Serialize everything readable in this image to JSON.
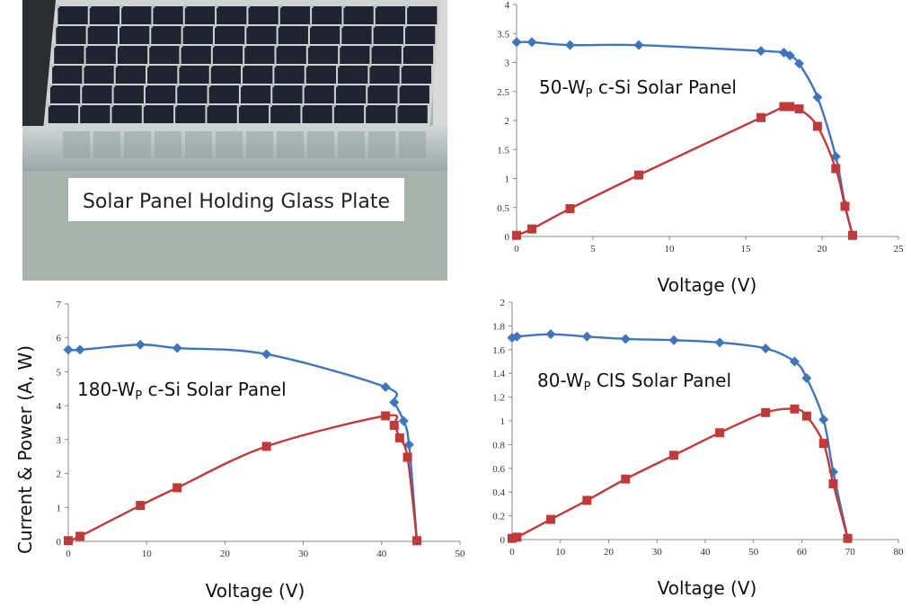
{
  "photo": {
    "caption": "Solar Panel Holding Glass Plate",
    "colors": {
      "frame": "#c9ccca",
      "cell": "#1f2430",
      "cell_line": "#bcc3c8",
      "glass": "#aeb8b6",
      "background": "#a8b3ad",
      "label_bg": "#ffffff",
      "dark_left": "#2b2e30"
    }
  },
  "shared": {
    "ylabel": "Current & Power (A, W)",
    "xlabel": "Voltage (V)"
  },
  "series_colors": {
    "current": "#3f75bd",
    "power": "#c0393b"
  },
  "chart_data": [
    {
      "type": "line",
      "label_prefix": "50-W",
      "label_sub": "P",
      "label_suffix": " c-Si Solar Panel",
      "xlabel": "Voltage (V)",
      "xlim": [
        0,
        25
      ],
      "ylim": [
        0,
        4
      ],
      "xticks": [
        0,
        5,
        10,
        15,
        20,
        25
      ],
      "yticks": [
        0,
        0.5,
        1,
        1.5,
        2,
        2.5,
        3,
        3.5,
        4
      ],
      "series": [
        {
          "marker": "diamond",
          "x": [
            0,
            1,
            3.5,
            8,
            16,
            17.5,
            17.9,
            18.5,
            19.7,
            20.9,
            21.5,
            22
          ],
          "y": [
            3.35,
            3.35,
            3.3,
            3.3,
            3.2,
            3.17,
            3.12,
            2.98,
            2.4,
            1.38,
            0.55,
            0.02
          ]
        },
        {
          "marker": "square",
          "x": [
            0,
            1,
            3.5,
            8,
            16,
            17.5,
            17.9,
            18.5,
            19.7,
            20.9,
            21.5,
            22
          ],
          "y": [
            0.02,
            0.13,
            0.48,
            1.06,
            2.05,
            2.24,
            2.24,
            2.2,
            1.9,
            1.17,
            0.52,
            0.02
          ]
        }
      ]
    },
    {
      "type": "line",
      "label_prefix": "180-W",
      "label_sub": "P",
      "label_suffix": " c-Si Solar Panel",
      "xlabel": "Voltage (V)",
      "xlim": [
        0,
        50
      ],
      "ylim": [
        0,
        7
      ],
      "xticks": [
        0,
        10,
        20,
        30,
        40,
        50
      ],
      "yticks": [
        0,
        1,
        2,
        3,
        4,
        5,
        6,
        7
      ],
      "series": [
        {
          "marker": "diamond",
          "x": [
            0,
            1.5,
            9.2,
            13.9,
            25.3,
            40.5,
            41.6,
            42.8,
            43.5,
            44.5
          ],
          "y": [
            5.65,
            5.65,
            5.8,
            5.7,
            5.52,
            4.55,
            4.1,
            3.55,
            2.85,
            0.02
          ]
        },
        {
          "marker": "square",
          "x": [
            0,
            1.5,
            9.2,
            13.9,
            25.3,
            40.5,
            41.6,
            42.3,
            43.3,
            44.5
          ],
          "y": [
            0.02,
            0.15,
            1.06,
            1.58,
            2.8,
            3.7,
            3.42,
            3.05,
            2.48,
            0.02
          ]
        }
      ]
    },
    {
      "type": "line",
      "label_prefix": "80-W",
      "label_sub": "P",
      "label_suffix": " CIS Solar Panel",
      "xlabel": "Voltage (V)",
      "xlim": [
        0,
        80
      ],
      "ylim": [
        0,
        2
      ],
      "xticks": [
        0,
        10,
        20,
        30,
        40,
        50,
        60,
        70,
        80
      ],
      "yticks": [
        0,
        0.2,
        0.4,
        0.6,
        0.8,
        1,
        1.2,
        1.4,
        1.6,
        1.8,
        2
      ],
      "series": [
        {
          "marker": "diamond",
          "x": [
            0,
            1,
            8,
            15.5,
            23.5,
            33.5,
            43,
            52.5,
            58.5,
            61,
            64.5,
            66.5,
            69.5
          ],
          "y": [
            1.7,
            1.71,
            1.73,
            1.71,
            1.69,
            1.68,
            1.66,
            1.61,
            1.5,
            1.36,
            1.01,
            0.57,
            0.01
          ]
        },
        {
          "marker": "square",
          "x": [
            0,
            1,
            8,
            15.5,
            23.5,
            33.5,
            43,
            52.5,
            58.5,
            61,
            64.5,
            66.5,
            69.5
          ],
          "y": [
            0.01,
            0.02,
            0.17,
            0.33,
            0.51,
            0.71,
            0.9,
            1.07,
            1.1,
            1.04,
            0.81,
            0.47,
            0.01
          ]
        }
      ]
    }
  ]
}
